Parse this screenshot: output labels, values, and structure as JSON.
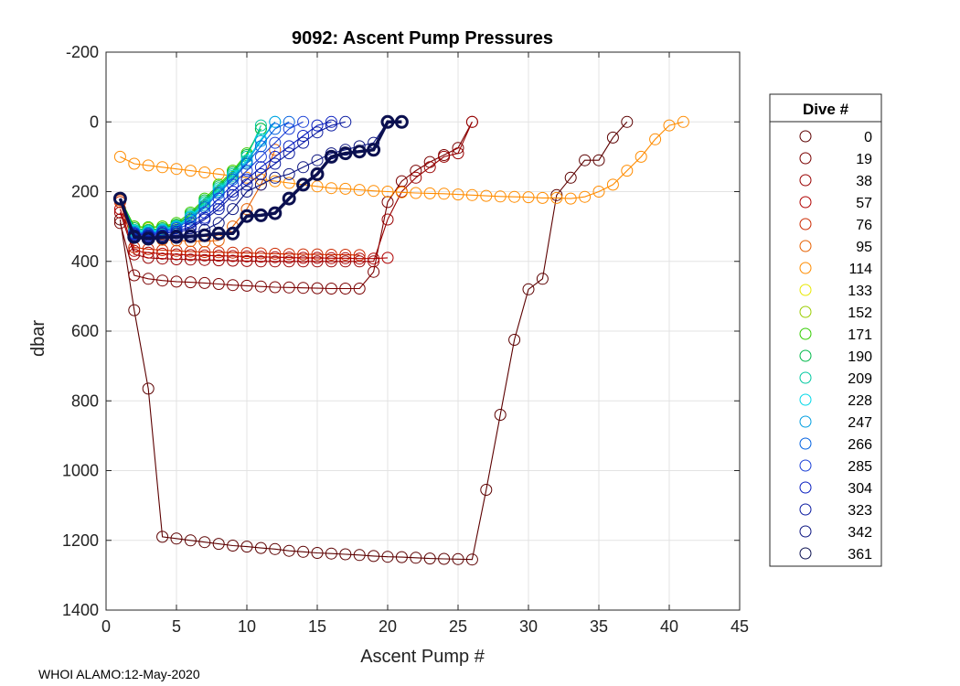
{
  "chart_data": {
    "type": "line",
    "title": "9092: Ascent Pump Pressures",
    "xlabel": "Ascent Pump #",
    "ylabel": "dbar",
    "xlim": [
      0,
      45
    ],
    "ylim": [
      -200,
      1400
    ],
    "y_reversed": true,
    "grid": true,
    "xticks": [
      0,
      5,
      10,
      15,
      20,
      25,
      30,
      35,
      40,
      45
    ],
    "yticks": [
      -200,
      0,
      200,
      400,
      600,
      800,
      1000,
      1200,
      1400
    ],
    "xtick_labels": [
      "0",
      "5",
      "10",
      "15",
      "20",
      "25",
      "30",
      "35",
      "40",
      "45"
    ],
    "ytick_labels": [
      "-200",
      "0",
      "200",
      "400",
      "600",
      "800",
      "1000",
      "1200",
      "1400"
    ],
    "legend_title": "Dive #",
    "legend_position": "right",
    "footer": "WHOI ALAMO:12-May-2020",
    "series": [
      {
        "name": "0",
        "color": "#5c0000",
        "x": [
          1,
          2,
          3,
          4,
          5,
          6,
          7,
          8,
          9,
          10,
          11,
          12,
          13,
          14,
          15,
          16,
          17,
          18,
          19,
          20,
          21,
          22,
          23,
          24,
          25,
          26,
          27,
          28,
          29,
          30,
          31,
          32,
          33,
          34,
          35,
          36,
          37
        ],
        "y": [
          280,
          540,
          765,
          1190,
          1195,
          1200,
          1205,
          1210,
          1215,
          1218,
          1222,
          1225,
          1230,
          1233,
          1236,
          1238,
          1240,
          1242,
          1245,
          1247,
          1248,
          1250,
          1252,
          1253,
          1254,
          1255,
          1055,
          840,
          625,
          480,
          450,
          210,
          160,
          110,
          110,
          45,
          0
        ]
      },
      {
        "name": "19",
        "color": "#7a0000",
        "x": [
          1,
          2,
          3,
          4,
          5,
          6,
          7,
          8,
          9,
          10,
          11,
          12,
          13,
          14,
          15,
          16,
          17,
          18,
          19,
          20,
          21,
          22,
          23,
          24,
          25,
          26
        ],
        "y": [
          290,
          440,
          450,
          455,
          458,
          460,
          462,
          465,
          468,
          470,
          472,
          474,
          475,
          476,
          477,
          478,
          478,
          478,
          430,
          230,
          170,
          140,
          115,
          95,
          75,
          0
        ]
      },
      {
        "name": "38",
        "color": "#990000",
        "x": [
          1,
          2,
          3,
          4,
          5,
          6,
          7,
          8,
          9,
          10,
          11,
          12,
          13,
          14,
          15,
          16,
          17,
          18,
          19,
          20,
          21,
          22,
          23,
          24,
          25,
          26
        ],
        "y": [
          260,
          380,
          390,
          392,
          394,
          395,
          396,
          397,
          398,
          399,
          400,
          400,
          400,
          400,
          400,
          400,
          400,
          400,
          400,
          280,
          200,
          160,
          130,
          100,
          90,
          0
        ]
      },
      {
        "name": "57",
        "color": "#b00000",
        "x": [
          1,
          2,
          3,
          4,
          5,
          6,
          7,
          8,
          9,
          10,
          11,
          12,
          13,
          14,
          15,
          16,
          17,
          18,
          19,
          20
        ],
        "y": [
          250,
          370,
          375,
          378,
          380,
          382,
          383,
          384,
          385,
          386,
          387,
          388,
          389,
          390,
          390,
          391,
          391,
          392,
          392,
          390
        ]
      },
      {
        "name": "76",
        "color": "#cc2a00",
        "x": [
          1,
          2,
          3,
          4,
          5,
          6,
          7,
          8,
          9,
          10,
          11,
          12,
          13,
          14,
          15,
          16,
          17,
          18
        ],
        "y": [
          230,
          360,
          365,
          368,
          370,
          372,
          373,
          374,
          375,
          376,
          377,
          378,
          379,
          380,
          380,
          381,
          381,
          382
        ]
      },
      {
        "name": "95",
        "color": "#e66000",
        "x": [
          1,
          2,
          3,
          4,
          5,
          6,
          7,
          8,
          9,
          10,
          11,
          12
        ],
        "y": [
          225,
          330,
          335,
          338,
          340,
          342,
          343,
          340,
          300,
          250,
          180,
          80
        ]
      },
      {
        "name": "114",
        "color": "#ff8c00",
        "x": [
          1,
          2,
          3,
          4,
          5,
          6,
          7,
          8,
          9,
          10,
          11,
          12,
          13,
          14,
          15,
          16,
          17,
          18,
          19,
          20,
          21,
          22,
          23,
          24,
          25,
          26,
          27,
          28,
          29,
          30,
          31,
          32,
          33,
          34,
          35,
          36,
          37,
          38,
          39,
          40,
          41
        ],
        "y": [
          100,
          120,
          125,
          130,
          135,
          140,
          145,
          150,
          155,
          160,
          165,
          170,
          175,
          180,
          185,
          190,
          192,
          195,
          198,
          200,
          202,
          204,
          205,
          206,
          208,
          210,
          212,
          214,
          215,
          216,
          218,
          218,
          220,
          215,
          200,
          180,
          140,
          100,
          50,
          10,
          0
        ]
      },
      {
        "name": "133",
        "color": "#e8e800",
        "x": [
          1,
          2,
          3,
          4,
          5,
          6,
          7,
          8,
          9
        ],
        "y": [
          220,
          300,
          305,
          300,
          295,
          280,
          240,
          180,
          140
        ]
      },
      {
        "name": "152",
        "color": "#9acd00",
        "x": [
          1,
          2,
          3,
          4,
          5,
          6,
          7,
          8,
          9,
          10
        ],
        "y": [
          220,
          300,
          305,
          300,
          295,
          270,
          230,
          200,
          160,
          120
        ]
      },
      {
        "name": "171",
        "color": "#33cc00",
        "x": [
          1,
          2,
          3,
          4,
          5,
          6,
          7,
          8,
          9,
          10,
          11
        ],
        "y": [
          220,
          300,
          302,
          300,
          290,
          260,
          220,
          180,
          140,
          90,
          20
        ]
      },
      {
        "name": "190",
        "color": "#00b84a",
        "x": [
          1,
          2,
          3,
          4,
          5,
          6,
          7,
          8,
          9,
          10,
          11
        ],
        "y": [
          220,
          305,
          310,
          305,
          295,
          265,
          225,
          185,
          145,
          95,
          20
        ]
      },
      {
        "name": "209",
        "color": "#00c8a0",
        "x": [
          1,
          2,
          3,
          4,
          5,
          6,
          7,
          8,
          9,
          10,
          11
        ],
        "y": [
          220,
          310,
          312,
          308,
          298,
          270,
          230,
          190,
          150,
          100,
          10
        ]
      },
      {
        "name": "228",
        "color": "#00d8e8",
        "x": [
          1,
          2,
          3,
          4,
          5,
          6,
          7,
          8,
          9,
          10,
          11,
          12
        ],
        "y": [
          220,
          312,
          315,
          310,
          300,
          272,
          235,
          195,
          155,
          110,
          50,
          0
        ]
      },
      {
        "name": "247",
        "color": "#009ee0",
        "x": [
          1,
          2,
          3,
          4,
          5,
          6,
          7,
          8,
          9,
          10,
          11,
          12
        ],
        "y": [
          220,
          315,
          318,
          312,
          302,
          275,
          240,
          200,
          160,
          115,
          55,
          0
        ]
      },
      {
        "name": "266",
        "color": "#0060e0",
        "x": [
          1,
          2,
          3,
          4,
          5,
          6,
          7,
          8,
          9,
          10,
          11,
          12,
          13
        ],
        "y": [
          220,
          318,
          320,
          315,
          305,
          280,
          245,
          205,
          165,
          120,
          70,
          20,
          0
        ]
      },
      {
        "name": "285",
        "color": "#1a3fd6",
        "x": [
          1,
          2,
          3,
          4,
          5,
          6,
          7,
          8,
          9,
          10,
          11,
          12,
          13,
          14
        ],
        "y": [
          220,
          320,
          322,
          318,
          310,
          290,
          260,
          220,
          180,
          140,
          100,
          60,
          20,
          0
        ]
      },
      {
        "name": "304",
        "color": "#0a1fc0",
        "x": [
          1,
          2,
          3,
          4,
          5,
          6,
          7,
          8,
          9,
          10,
          11,
          12,
          13,
          14,
          15,
          16
        ],
        "y": [
          220,
          322,
          325,
          320,
          315,
          300,
          275,
          240,
          200,
          165,
          130,
          100,
          70,
          40,
          10,
          0
        ]
      },
      {
        "name": "323",
        "color": "#0a1aa0",
        "x": [
          1,
          2,
          3,
          4,
          5,
          6,
          7,
          8,
          9,
          10,
          11,
          12,
          13,
          14,
          15,
          16,
          17
        ],
        "y": [
          220,
          325,
          328,
          325,
          320,
          305,
          280,
          250,
          210,
          180,
          150,
          120,
          90,
          60,
          30,
          10,
          0
        ]
      },
      {
        "name": "342",
        "color": "#0b1480",
        "x": [
          1,
          2,
          3,
          4,
          5,
          6,
          7,
          8,
          9,
          10,
          11,
          12,
          13,
          14,
          15,
          16,
          17,
          18,
          19,
          20
        ],
        "y": [
          220,
          325,
          330,
          328,
          325,
          320,
          310,
          290,
          250,
          200,
          180,
          160,
          150,
          130,
          110,
          90,
          80,
          70,
          60,
          0
        ]
      },
      {
        "name": "361",
        "color": "#0b1050",
        "x": [
          1,
          2,
          3,
          4,
          5,
          6,
          7,
          8,
          9,
          10,
          11,
          12,
          13,
          14,
          15,
          16,
          17,
          18,
          19,
          20,
          21
        ],
        "y": [
          220,
          330,
          335,
          332,
          330,
          328,
          325,
          320,
          320,
          270,
          268,
          262,
          220,
          180,
          150,
          100,
          90,
          85,
          80,
          0,
          0
        ]
      }
    ]
  }
}
